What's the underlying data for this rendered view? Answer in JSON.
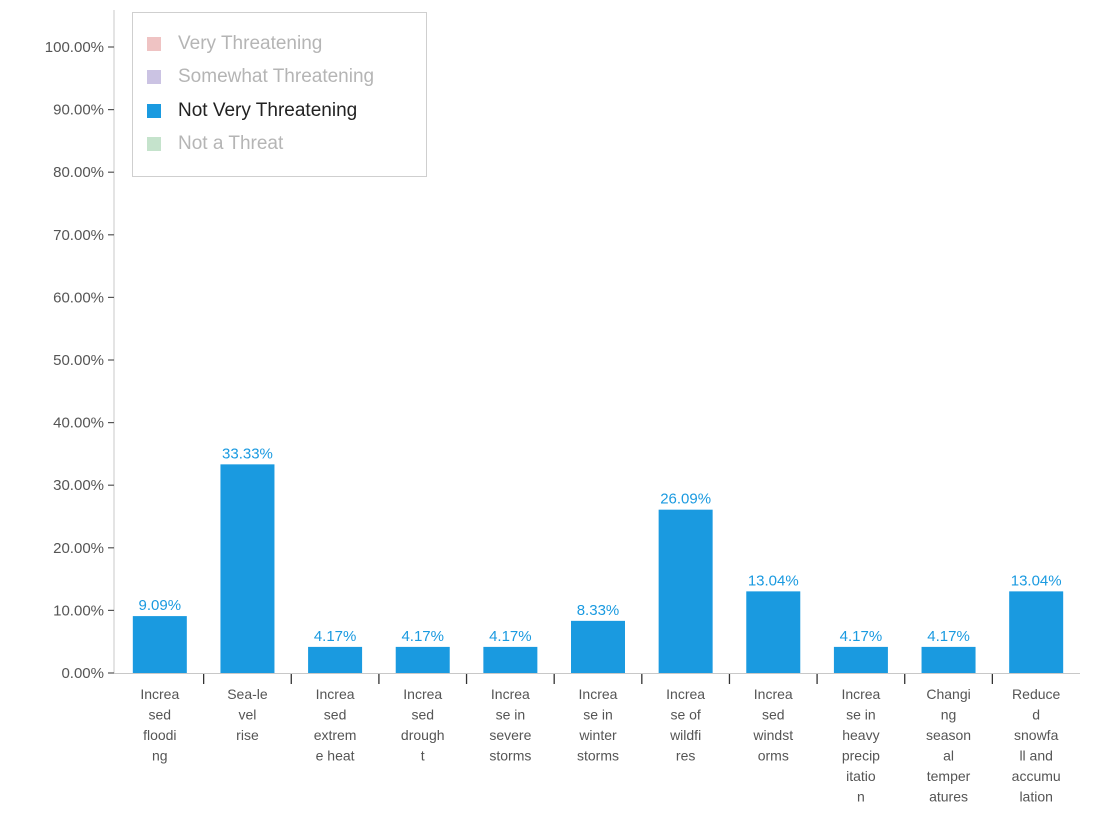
{
  "legend": {
    "items": [
      {
        "label": "Very Threatening",
        "color": "#efc3c3",
        "active": false
      },
      {
        "label": "Somewhat Threatening",
        "color": "#cbc3e3",
        "active": false
      },
      {
        "label": "Not Very Threatening",
        "color": "#1a9ae0",
        "active": true
      },
      {
        "label": "Not a Threat",
        "color": "#c5e3cc",
        "active": false
      }
    ]
  },
  "chart_data": {
    "type": "bar",
    "categories": [
      [
        "Increa",
        "sed",
        "floodi",
        "ng"
      ],
      [
        "Sea-le",
        "vel",
        "rise"
      ],
      [
        "Increa",
        "sed",
        "extrem",
        "e heat"
      ],
      [
        "Increa",
        "sed",
        "drough",
        "t"
      ],
      [
        "Increa",
        "se in",
        "severe",
        "storms"
      ],
      [
        "Increa",
        "se in",
        "winter",
        "storms"
      ],
      [
        "Increa",
        "se of",
        "wildfi",
        "res"
      ],
      [
        "Increa",
        "sed",
        "windst",
        "orms"
      ],
      [
        "Increa",
        "se in",
        "heavy",
        "precip",
        "itatio",
        "n"
      ],
      [
        "Changi",
        "ng",
        "season",
        "al",
        "temper",
        "atures"
      ],
      [
        "Reduce",
        "d",
        "snowfa",
        "ll and",
        "accumu",
        "lation"
      ]
    ],
    "series": [
      {
        "name": "Not Very Threatening",
        "color": "#1a9ae0",
        "values": [
          9.09,
          33.33,
          4.17,
          4.17,
          4.17,
          8.33,
          26.09,
          13.04,
          4.17,
          4.17,
          13.04
        ],
        "labels": [
          "9.09%",
          "33.33%",
          "4.17%",
          "4.17%",
          "4.17%",
          "8.33%",
          "26.09%",
          "13.04%",
          "4.17%",
          "4.17%",
          "13.04%"
        ]
      }
    ],
    "y_ticks": [
      "0.00%",
      "10.00%",
      "20.00%",
      "30.00%",
      "40.00%",
      "50.00%",
      "60.00%",
      "70.00%",
      "80.00%",
      "90.00%",
      "100.00%"
    ],
    "ylim": [
      0,
      100
    ],
    "grid": false,
    "legend_position": "top-left"
  }
}
